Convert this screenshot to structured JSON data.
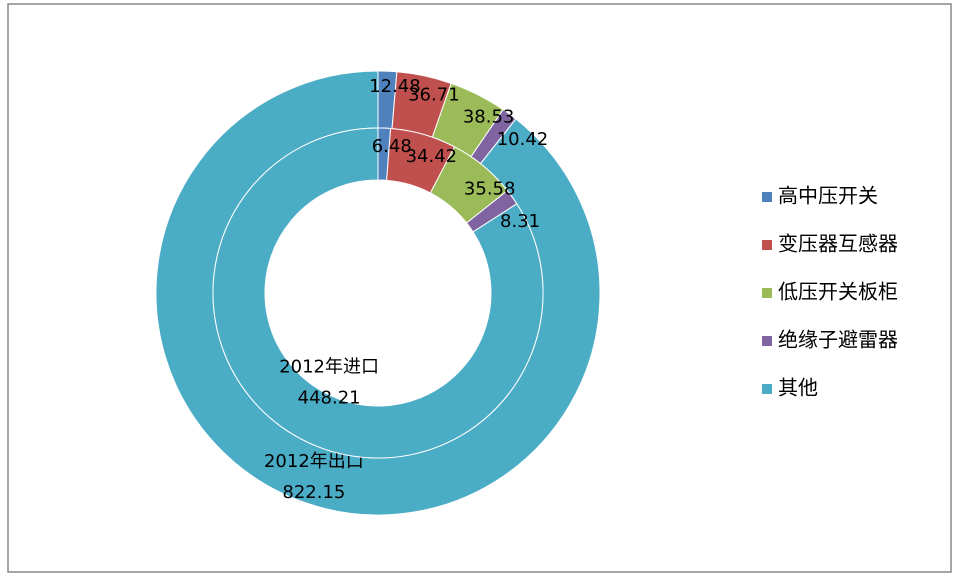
{
  "chart_data": {
    "type": "doughnut",
    "categories": [
      "高中压开关",
      "变压器互感器",
      "低压开关板柜",
      "绝缘子避雷器",
      "其他"
    ],
    "colors": [
      "#4f81bd",
      "#c0504d",
      "#9bbb59",
      "#8064a2",
      "#4bacc6"
    ],
    "series": [
      {
        "name": "2012年出口",
        "values": [
          12.48,
          36.71,
          38.53,
          10.42,
          822.15
        ]
      },
      {
        "name": "2012年进口",
        "values": [
          6.48,
          34.42,
          35.58,
          8.31,
          448.21
        ]
      }
    ],
    "legend": "right"
  }
}
